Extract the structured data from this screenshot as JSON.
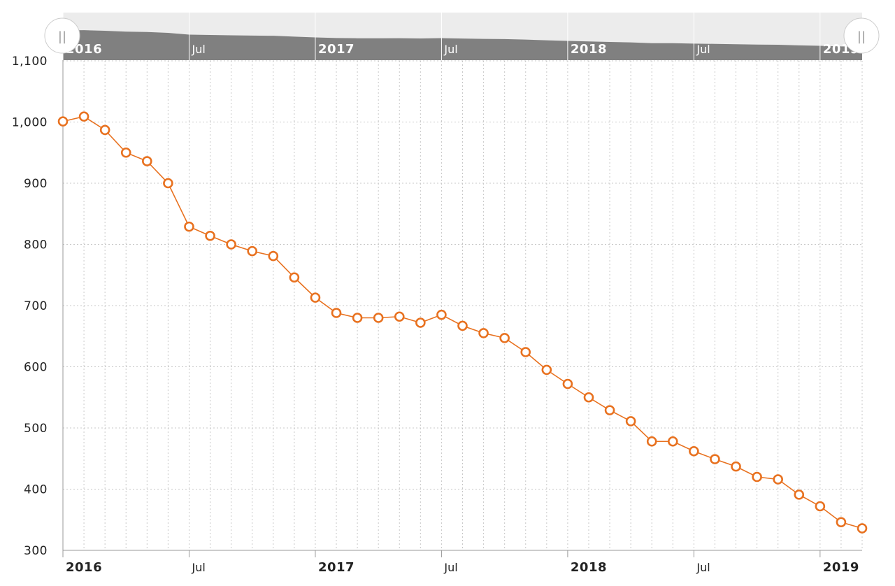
{
  "chart_data": {
    "type": "line",
    "title": "",
    "xlabel": "",
    "ylabel": "",
    "x": [
      "2016-01",
      "2016-02",
      "2016-03",
      "2016-04",
      "2016-05",
      "2016-06",
      "2016-07",
      "2016-08",
      "2016-09",
      "2016-10",
      "2016-11",
      "2016-12",
      "2017-01",
      "2017-02",
      "2017-03",
      "2017-04",
      "2017-05",
      "2017-06",
      "2017-07",
      "2017-08",
      "2017-09",
      "2017-10",
      "2017-11",
      "2017-12",
      "2018-01",
      "2018-02",
      "2018-03",
      "2018-04",
      "2018-05",
      "2018-06",
      "2018-07",
      "2018-08",
      "2018-09",
      "2018-10",
      "2018-11",
      "2018-12",
      "2019-01",
      "2019-02",
      "2019-03"
    ],
    "series": [
      {
        "values": [
          1001,
          1009,
          987,
          950,
          936,
          900,
          829,
          814,
          800,
          789,
          781,
          746,
          713,
          688,
          680,
          680,
          682,
          672,
          685,
          667,
          655,
          647,
          624,
          595,
          572,
          550,
          529,
          511,
          478,
          478,
          462,
          449,
          437,
          420,
          416,
          391,
          372,
          346,
          336
        ]
      }
    ],
    "ylim": [
      300,
      1100
    ],
    "y_ticks": [
      "300",
      "400",
      "500",
      "600",
      "700",
      "800",
      "900",
      "1,000",
      "1,100"
    ],
    "x_ticks": [
      {
        "label": "2016",
        "date": "2016-01",
        "bold": true
      },
      {
        "label": "Jul",
        "date": "2016-07",
        "bold": false
      },
      {
        "label": "2017",
        "date": "2017-01",
        "bold": true
      },
      {
        "label": "Jul",
        "date": "2017-07",
        "bold": false
      },
      {
        "label": "2018",
        "date": "2018-01",
        "bold": true
      },
      {
        "label": "Jul",
        "date": "2018-07",
        "bold": false
      },
      {
        "label": "2019",
        "date": "2019-01",
        "bold": true
      }
    ],
    "navigator_ticks": [
      {
        "label": "2016",
        "date": "2016-01",
        "bold": true
      },
      {
        "label": "Jul",
        "date": "2016-07",
        "bold": false
      },
      {
        "label": "2017",
        "date": "2017-01",
        "bold": true
      },
      {
        "label": "Jul",
        "date": "2017-07",
        "bold": false
      },
      {
        "label": "2018",
        "date": "2018-01",
        "bold": true
      },
      {
        "label": "Jul",
        "date": "2018-07",
        "bold": false
      },
      {
        "label": "2019",
        "date": "2019-01",
        "bold": true
      }
    ],
    "grid": true,
    "legend": "none",
    "navigator": true,
    "colors": {
      "line": "#E8711F",
      "marker_fill": "#ffffff",
      "grid": "#c8c8c8",
      "axis": "#999999",
      "navigator_background": "#ececec",
      "navigator_area": "#808080",
      "handle_fill": "#ffffff",
      "handle_stroke": "#cccccc"
    },
    "handles": {
      "left_label": "||",
      "right_label": "||"
    }
  }
}
